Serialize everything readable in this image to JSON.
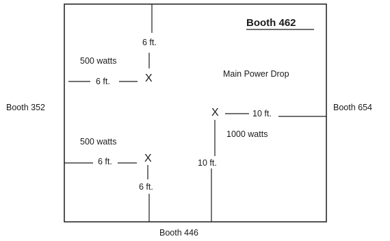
{
  "booths": {
    "current": "Booth 462",
    "left": "Booth 352",
    "right": "Booth 654",
    "bottom": "Booth 446"
  },
  "main_power_drop": "Main Power Drop",
  "outlets": {
    "upper_left": {
      "marker": "X",
      "wattage": "500 watts",
      "distance_from_top": "6 ft.",
      "distance_from_left": "6 ft."
    },
    "lower_left": {
      "marker": "X",
      "wattage": "500 watts",
      "distance_from_left": "6 ft.",
      "distance_from_bottom": "6 ft."
    },
    "main": {
      "marker": "X",
      "wattage": "1000 watts",
      "distance_from_right": "10 ft.",
      "distance_from_bottom": "10 ft."
    }
  }
}
